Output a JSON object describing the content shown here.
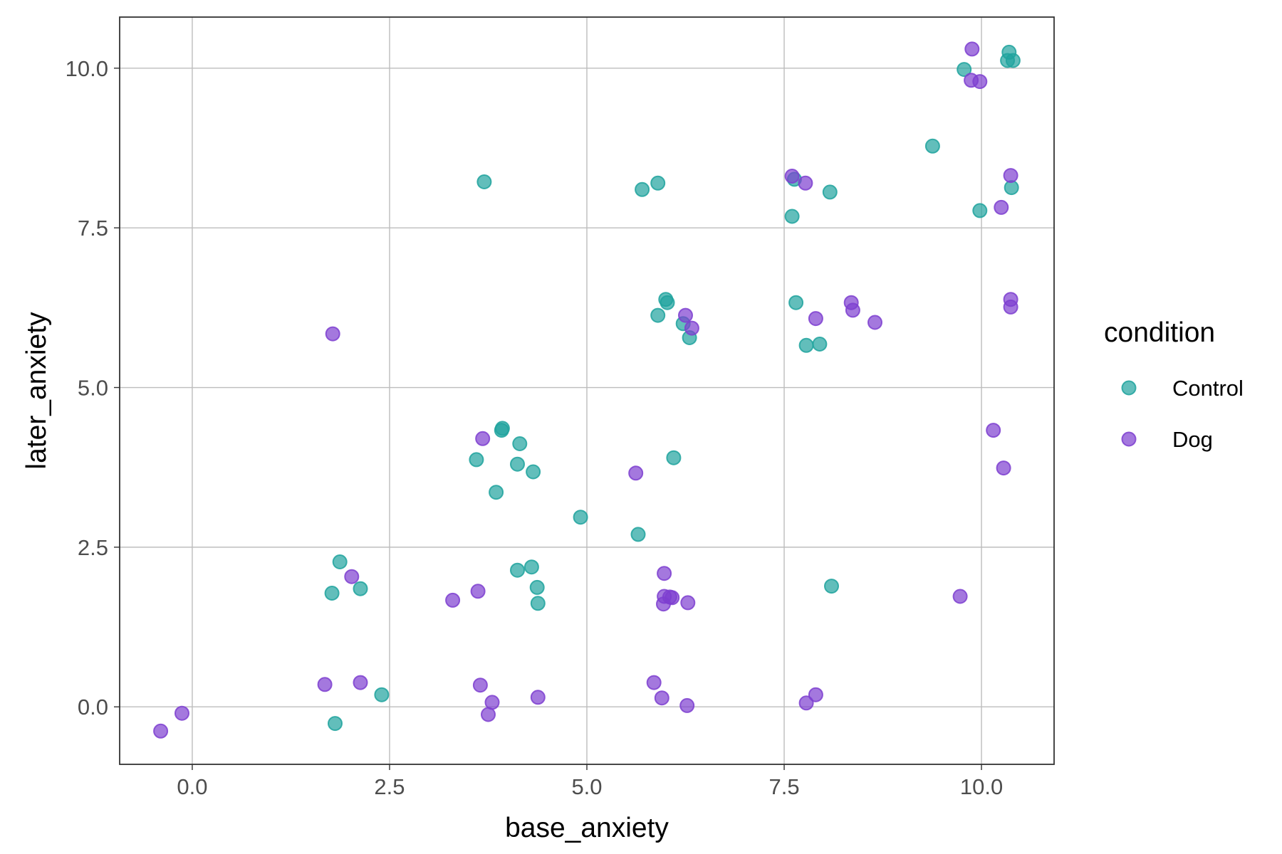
{
  "chart_data": {
    "type": "scatter",
    "xlabel": "base_anxiety",
    "ylabel": "later_anxiety",
    "xlim": [
      -0.92,
      10.92
    ],
    "ylim": [
      -0.9,
      10.8
    ],
    "x_ticks": [
      0.0,
      2.5,
      5.0,
      7.5,
      10.0
    ],
    "y_ticks": [
      0.0,
      2.5,
      5.0,
      7.5,
      10.0
    ],
    "x_tick_labels": [
      "0.0",
      "2.5",
      "5.0",
      "7.5",
      "10.0"
    ],
    "y_tick_labels": [
      "0.0",
      "2.5",
      "5.0",
      "7.5",
      "10.0"
    ],
    "grid": true,
    "legend": {
      "title": "condition",
      "position": "right",
      "entries": [
        "Control",
        "Dog"
      ]
    },
    "series": [
      {
        "name": "Control",
        "color": "#20a39e",
        "points": [
          [
            10.35,
            10.25
          ],
          [
            10.33,
            10.12
          ],
          [
            10.4,
            10.12
          ],
          [
            9.78,
            9.98
          ],
          [
            9.38,
            8.78
          ],
          [
            10.38,
            8.13
          ],
          [
            9.98,
            7.77
          ],
          [
            3.7,
            8.22
          ],
          [
            5.7,
            8.1
          ],
          [
            5.9,
            8.2
          ],
          [
            7.63,
            8.26
          ],
          [
            8.08,
            8.06
          ],
          [
            7.6,
            7.68
          ],
          [
            6.0,
            6.38
          ],
          [
            6.02,
            6.33
          ],
          [
            5.9,
            6.13
          ],
          [
            6.22,
            6.0
          ],
          [
            6.3,
            5.78
          ],
          [
            7.65,
            6.33
          ],
          [
            7.78,
            5.66
          ],
          [
            7.95,
            5.68
          ],
          [
            3.93,
            4.36
          ],
          [
            3.92,
            4.33
          ],
          [
            4.15,
            4.12
          ],
          [
            3.6,
            3.87
          ],
          [
            4.12,
            3.8
          ],
          [
            4.32,
            3.68
          ],
          [
            3.85,
            3.36
          ],
          [
            6.1,
            3.9
          ],
          [
            4.92,
            2.97
          ],
          [
            5.65,
            2.7
          ],
          [
            4.12,
            2.14
          ],
          [
            4.3,
            2.19
          ],
          [
            4.37,
            1.87
          ],
          [
            4.38,
            1.62
          ],
          [
            8.1,
            1.89
          ],
          [
            1.87,
            2.27
          ],
          [
            1.77,
            1.78
          ],
          [
            2.13,
            1.85
          ],
          [
            2.4,
            0.19
          ],
          [
            1.81,
            -0.26
          ]
        ]
      },
      {
        "name": "Dog",
        "color": "#7e3fd0",
        "points": [
          [
            9.88,
            10.3
          ],
          [
            9.87,
            9.81
          ],
          [
            9.98,
            9.79
          ],
          [
            10.37,
            8.32
          ],
          [
            10.25,
            7.82
          ],
          [
            7.6,
            8.31
          ],
          [
            7.77,
            8.2
          ],
          [
            10.37,
            6.38
          ],
          [
            10.37,
            6.26
          ],
          [
            6.25,
            6.13
          ],
          [
            6.33,
            5.93
          ],
          [
            8.35,
            6.33
          ],
          [
            8.37,
            6.21
          ],
          [
            7.9,
            6.08
          ],
          [
            8.65,
            6.02
          ],
          [
            1.78,
            5.84
          ],
          [
            10.15,
            4.33
          ],
          [
            10.28,
            3.74
          ],
          [
            3.68,
            4.2
          ],
          [
            5.62,
            3.66
          ],
          [
            5.98,
            2.09
          ],
          [
            5.98,
            1.73
          ],
          [
            6.08,
            1.71
          ],
          [
            6.05,
            1.72
          ],
          [
            5.97,
            1.61
          ],
          [
            6.28,
            1.63
          ],
          [
            9.73,
            1.73
          ],
          [
            2.02,
            2.04
          ],
          [
            3.62,
            1.81
          ],
          [
            3.3,
            1.67
          ],
          [
            1.68,
            0.35
          ],
          [
            2.13,
            0.38
          ],
          [
            -0.4,
            -0.38
          ],
          [
            -0.13,
            -0.1
          ],
          [
            3.65,
            0.34
          ],
          [
            3.8,
            0.07
          ],
          [
            3.75,
            -0.12
          ],
          [
            4.38,
            0.15
          ],
          [
            5.85,
            0.38
          ],
          [
            5.95,
            0.14
          ],
          [
            6.27,
            0.02
          ],
          [
            7.78,
            0.06
          ],
          [
            7.9,
            0.19
          ]
        ]
      }
    ]
  }
}
